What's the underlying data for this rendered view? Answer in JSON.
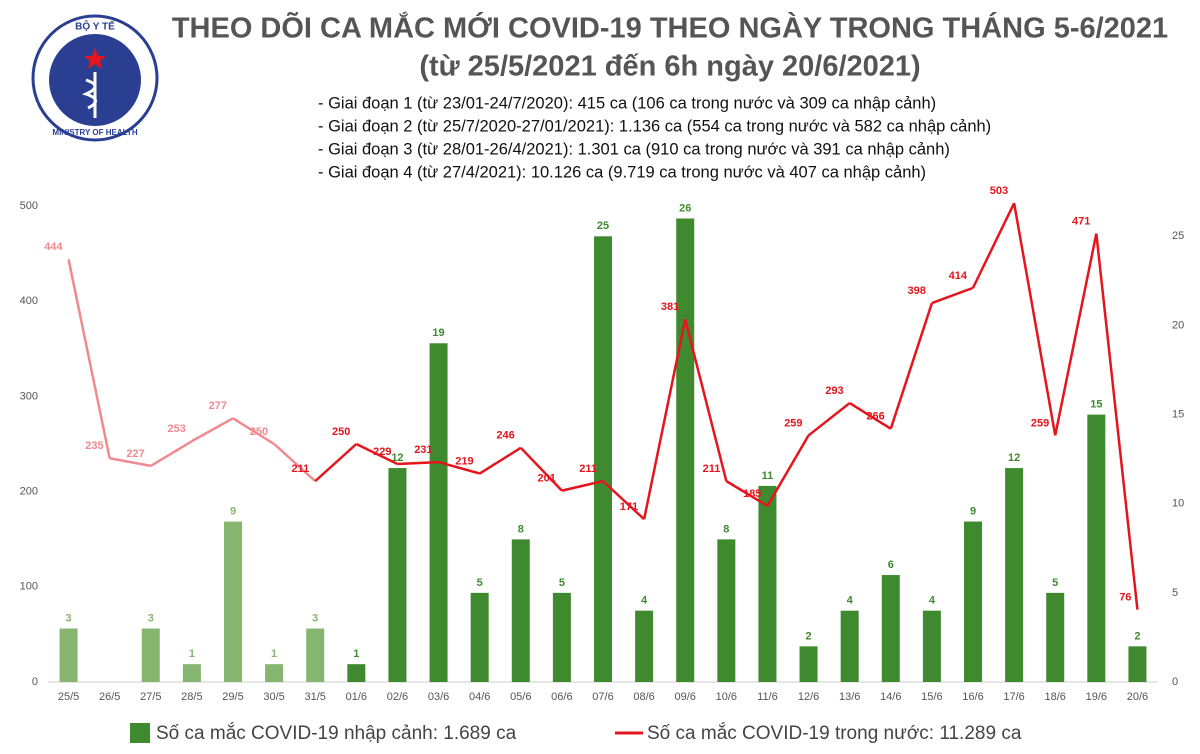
{
  "logo": {
    "top": "BỘ Y TẾ",
    "bottom": "MINISTRY OF HEALTH"
  },
  "chart_data": {
    "type": "bar-line",
    "title": "THEO DÕI CA MẮC MỚI COVID-19 THEO NGÀY TRONG THÁNG 5-6/2021",
    "subtitle": "(từ 25/5/2021 đến 6h ngày 20/6/2021)",
    "notes": [
      "- Giai đoạn 1 (từ 23/01-24/7/2020): 415 ca (106 ca trong nước và 309 ca nhập cảnh)",
      "- Giai đoạn 2 (từ 25/7/2020-27/01/2021): 1.136 ca (554 ca trong nước và 582 ca nhập cảnh)",
      "- Giai đoạn 3 (từ 28/01-26/4/2021): 1.301 ca (910 ca trong nước và 391 ca nhập cảnh)",
      "- Giai đoạn 4 (từ 27/4/2021): 10.126 ca (9.719 ca trong nước và 407 ca nhập cảnh)"
    ],
    "categories": [
      "25/5",
      "26/5",
      "27/5",
      "28/5",
      "29/5",
      "30/5",
      "31/5",
      "01/6",
      "02/6",
      "03/6",
      "04/6",
      "05/6",
      "06/6",
      "07/6",
      "08/6",
      "09/6",
      "10/6",
      "11/6",
      "12/6",
      "13/6",
      "14/6",
      "15/6",
      "16/6",
      "17/6",
      "18/6",
      "19/6",
      "20/6"
    ],
    "series": [
      {
        "name": "Số ca mắc COVID-19 nhập cảnh: 1.689 ca",
        "kind": "bar",
        "axis": "y2",
        "color": "#3f8a2f",
        "colors": [
          "#86b56f",
          null,
          "#86b56f",
          "#86b56f",
          "#86b56f",
          "#86b56f",
          "#86b56f",
          "#3f8a2f",
          "#3f8a2f",
          "#3f8a2f",
          "#3f8a2f",
          "#3f8a2f",
          "#3f8a2f",
          "#3f8a2f",
          "#3f8a2f",
          "#3f8a2f",
          "#3f8a2f",
          "#3f8a2f",
          "#3f8a2f",
          "#3f8a2f",
          "#3f8a2f",
          "#3f8a2f",
          "#3f8a2f",
          "#3f8a2f",
          "#3f8a2f",
          "#3f8a2f",
          "#3f8a2f"
        ],
        "values": [
          3,
          null,
          3,
          1,
          9,
          1,
          3,
          1,
          12,
          19,
          5,
          8,
          5,
          25,
          4,
          26,
          8,
          11,
          2,
          4,
          6,
          4,
          9,
          12,
          5,
          15,
          2
        ]
      },
      {
        "name": "Số ca mắc COVID-19 trong nước: 11.289 ca",
        "kind": "line",
        "color": "#e4151c",
        "colors": [
          "#f08a8f",
          "#f08a8f",
          "#f08a8f",
          "#f08a8f",
          "#f08a8f",
          "#f08a8f",
          "#e4151c",
          "#e4151c",
          "#e4151c",
          "#e4151c",
          "#e4151c",
          "#e4151c",
          "#e4151c",
          "#e4151c",
          "#e4151c",
          "#e4151c",
          "#e4151c",
          "#e4151c",
          "#e4151c",
          "#e4151c",
          "#e4151c",
          "#e4151c",
          "#e4151c",
          "#e4151c",
          "#e4151c",
          "#e4151c",
          "#e4151c"
        ],
        "values": [
          444,
          235,
          227,
          253,
          277,
          250,
          211,
          250,
          229,
          231,
          219,
          246,
          201,
          211,
          171,
          381,
          211,
          185,
          259,
          293,
          266,
          398,
          414,
          503,
          259,
          471,
          76
        ]
      }
    ],
    "ylim": [
      0,
      500
    ],
    "yticks": [
      0,
      100,
      200,
      300,
      400,
      500
    ],
    "y2lim": [
      0,
      26.7
    ],
    "y2ticks": [
      0,
      5,
      10,
      15,
      20,
      25
    ]
  }
}
